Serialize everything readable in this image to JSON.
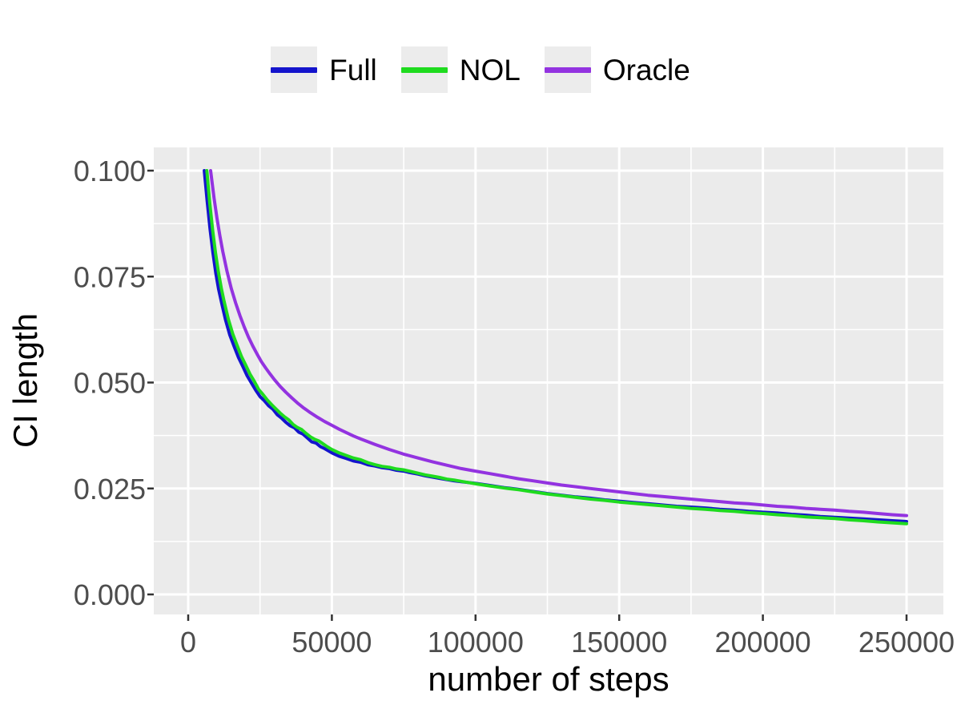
{
  "legend": {
    "position": "top",
    "items": [
      {
        "label": "Full",
        "color": "#1414CC"
      },
      {
        "label": "NOL",
        "color": "#1FDB1F"
      },
      {
        "label": "Oracle",
        "color": "#9333E0"
      }
    ]
  },
  "style": {
    "panel_background": "#EBEBEB",
    "grid_color": "#FFFFFF",
    "tick_mark_color": "#333333",
    "tick_label_color": "#4D4D4D",
    "axis_title_color": "#000000",
    "legend_key_background": "#ECECEC"
  },
  "chart_data": {
    "type": "line",
    "title": "",
    "xlabel": "number of steps",
    "ylabel": "CI length",
    "xlim": [
      0,
      250000
    ],
    "ylim": [
      0.0,
      0.1
    ],
    "grid": true,
    "legend_position": "top",
    "x_ticks": [
      0,
      50000,
      100000,
      150000,
      200000,
      250000
    ],
    "x_tick_labels": [
      "0",
      "50000",
      "100000",
      "150000",
      "200000",
      "250000"
    ],
    "y_ticks": [
      0.0,
      0.025,
      0.05,
      0.075,
      0.1
    ],
    "y_tick_labels": [
      "0.000",
      "0.025",
      "0.050",
      "0.075",
      "0.100"
    ],
    "series": [
      {
        "name": "Full",
        "color": "#1414CC",
        "points": [
          [
            5600,
            0.1
          ],
          [
            6600,
            0.0928
          ],
          [
            7600,
            0.0862
          ],
          [
            8600,
            0.0806
          ],
          [
            9600,
            0.0759
          ],
          [
            10600,
            0.072
          ],
          [
            11600,
            0.0689
          ],
          [
            13000,
            0.0648
          ],
          [
            14500,
            0.0612
          ],
          [
            16000,
            0.0585
          ],
          [
            17500,
            0.0559
          ],
          [
            19000,
            0.0538
          ],
          [
            20500,
            0.0516
          ],
          [
            22000,
            0.0499
          ],
          [
            23500,
            0.0482
          ],
          [
            25000,
            0.0467
          ],
          [
            26500,
            0.0457
          ],
          [
            28000,
            0.0445
          ],
          [
            29500,
            0.0437
          ],
          [
            31000,
            0.0424
          ],
          [
            32500,
            0.0416
          ],
          [
            34000,
            0.0406
          ],
          [
            35500,
            0.0398
          ],
          [
            37000,
            0.0393
          ],
          [
            38500,
            0.0383
          ],
          [
            40000,
            0.0378
          ],
          [
            41500,
            0.0369
          ],
          [
            43000,
            0.036
          ],
          [
            44500,
            0.0357
          ],
          [
            46000,
            0.0349
          ],
          [
            47500,
            0.0344
          ],
          [
            49000,
            0.0338
          ],
          [
            50000,
            0.0334
          ],
          [
            52500,
            0.0326
          ],
          [
            55000,
            0.0321
          ],
          [
            57500,
            0.0315
          ],
          [
            60000,
            0.0312
          ],
          [
            62500,
            0.0306
          ],
          [
            65000,
            0.0303
          ],
          [
            67500,
            0.0299
          ],
          [
            70000,
            0.0297
          ],
          [
            72500,
            0.0293
          ],
          [
            75000,
            0.0291
          ],
          [
            77500,
            0.0287
          ],
          [
            80000,
            0.0284
          ],
          [
            82500,
            0.028
          ],
          [
            85000,
            0.0277
          ],
          [
            87500,
            0.0274
          ],
          [
            90000,
            0.0271
          ],
          [
            92500,
            0.0268
          ],
          [
            95000,
            0.0266
          ],
          [
            97500,
            0.0264
          ],
          [
            100000,
            0.0262
          ],
          [
            105000,
            0.0257
          ],
          [
            110000,
            0.0252
          ],
          [
            115000,
            0.0248
          ],
          [
            120000,
            0.0243
          ],
          [
            125000,
            0.0238
          ],
          [
            130000,
            0.0234
          ],
          [
            135000,
            0.023
          ],
          [
            140000,
            0.0227
          ],
          [
            145000,
            0.0223
          ],
          [
            150000,
            0.022
          ],
          [
            155000,
            0.0217
          ],
          [
            160000,
            0.0214
          ],
          [
            165000,
            0.0211
          ],
          [
            170000,
            0.0208
          ],
          [
            175000,
            0.0206
          ],
          [
            180000,
            0.0204
          ],
          [
            185000,
            0.0201
          ],
          [
            190000,
            0.0199
          ],
          [
            195000,
            0.0196
          ],
          [
            200000,
            0.0194
          ],
          [
            205000,
            0.0192
          ],
          [
            210000,
            0.0189
          ],
          [
            215000,
            0.0187
          ],
          [
            220000,
            0.0184
          ],
          [
            225000,
            0.0182
          ],
          [
            230000,
            0.018
          ],
          [
            235000,
            0.0178
          ],
          [
            240000,
            0.0176
          ],
          [
            245000,
            0.0174
          ],
          [
            250000,
            0.0172
          ]
        ]
      },
      {
        "name": "NOL",
        "color": "#1FDB1F",
        "points": [
          [
            6500,
            0.1
          ],
          [
            7500,
            0.0924
          ],
          [
            8500,
            0.086
          ],
          [
            9500,
            0.0806
          ],
          [
            10500,
            0.0761
          ],
          [
            11500,
            0.0723
          ],
          [
            12500,
            0.0691
          ],
          [
            14000,
            0.0649
          ],
          [
            15500,
            0.0615
          ],
          [
            17000,
            0.0588
          ],
          [
            18500,
            0.0562
          ],
          [
            20000,
            0.0541
          ],
          [
            21500,
            0.052
          ],
          [
            23000,
            0.0503
          ],
          [
            24500,
            0.0484
          ],
          [
            26000,
            0.0472
          ],
          [
            27500,
            0.0459
          ],
          [
            29000,
            0.0448
          ],
          [
            30500,
            0.0438
          ],
          [
            32000,
            0.0428
          ],
          [
            33500,
            0.0419
          ],
          [
            35000,
            0.0412
          ],
          [
            36500,
            0.0401
          ],
          [
            38000,
            0.0394
          ],
          [
            39500,
            0.0389
          ],
          [
            41000,
            0.038
          ],
          [
            42500,
            0.0372
          ],
          [
            44000,
            0.0366
          ],
          [
            45500,
            0.0362
          ],
          [
            47000,
            0.0355
          ],
          [
            48500,
            0.0348
          ],
          [
            50000,
            0.0342
          ],
          [
            52500,
            0.0334
          ],
          [
            55000,
            0.0328
          ],
          [
            57500,
            0.0322
          ],
          [
            60000,
            0.0318
          ],
          [
            62500,
            0.0311
          ],
          [
            65000,
            0.0306
          ],
          [
            67500,
            0.0302
          ],
          [
            70000,
            0.03
          ],
          [
            72500,
            0.0296
          ],
          [
            75000,
            0.0294
          ],
          [
            77500,
            0.029
          ],
          [
            80000,
            0.0286
          ],
          [
            82500,
            0.0282
          ],
          [
            85000,
            0.0279
          ],
          [
            87500,
            0.0276
          ],
          [
            90000,
            0.0272
          ],
          [
            92500,
            0.027
          ],
          [
            95000,
            0.0267
          ],
          [
            97500,
            0.0264
          ],
          [
            100000,
            0.0261
          ],
          [
            105000,
            0.0256
          ],
          [
            110000,
            0.0251
          ],
          [
            115000,
            0.0247
          ],
          [
            120000,
            0.0242
          ],
          [
            125000,
            0.0237
          ],
          [
            130000,
            0.0233
          ],
          [
            135000,
            0.0229
          ],
          [
            140000,
            0.0225
          ],
          [
            145000,
            0.0222
          ],
          [
            150000,
            0.0218
          ],
          [
            155000,
            0.0215
          ],
          [
            160000,
            0.0212
          ],
          [
            165000,
            0.0209
          ],
          [
            170000,
            0.0206
          ],
          [
            175000,
            0.0203
          ],
          [
            180000,
            0.0201
          ],
          [
            185000,
            0.0198
          ],
          [
            190000,
            0.0196
          ],
          [
            195000,
            0.0193
          ],
          [
            200000,
            0.0191
          ],
          [
            205000,
            0.0188
          ],
          [
            210000,
            0.0186
          ],
          [
            215000,
            0.0183
          ],
          [
            220000,
            0.0181
          ],
          [
            225000,
            0.0179
          ],
          [
            230000,
            0.0176
          ],
          [
            235000,
            0.0174
          ],
          [
            240000,
            0.0171
          ],
          [
            245000,
            0.0169
          ],
          [
            250000,
            0.0167
          ]
        ]
      },
      {
        "name": "Oracle",
        "color": "#9333E0",
        "points": [
          [
            7800,
            0.1
          ],
          [
            9000,
            0.0935
          ],
          [
            10000,
            0.0888
          ],
          [
            11000,
            0.0847
          ],
          [
            12000,
            0.081
          ],
          [
            13500,
            0.0763
          ],
          [
            15000,
            0.0722
          ],
          [
            16500,
            0.0688
          ],
          [
            18000,
            0.0658
          ],
          [
            19500,
            0.0631
          ],
          [
            21000,
            0.0607
          ],
          [
            22500,
            0.0586
          ],
          [
            24000,
            0.0567
          ],
          [
            25500,
            0.0549
          ],
          [
            27000,
            0.0534
          ],
          [
            28500,
            0.052
          ],
          [
            30000,
            0.0507
          ],
          [
            32000,
            0.0491
          ],
          [
            34000,
            0.0477
          ],
          [
            36000,
            0.0464
          ],
          [
            38000,
            0.0452
          ],
          [
            40000,
            0.0441
          ],
          [
            42500,
            0.0429
          ],
          [
            45000,
            0.0418
          ],
          [
            47500,
            0.0408
          ],
          [
            50000,
            0.0399
          ],
          [
            52500,
            0.039
          ],
          [
            55000,
            0.0382
          ],
          [
            57500,
            0.0374
          ],
          [
            60000,
            0.0367
          ],
          [
            65000,
            0.0354
          ],
          [
            70000,
            0.0342
          ],
          [
            75000,
            0.0331
          ],
          [
            80000,
            0.0322
          ],
          [
            85000,
            0.0313
          ],
          [
            90000,
            0.0305
          ],
          [
            95000,
            0.0297
          ],
          [
            100000,
            0.0291
          ],
          [
            105000,
            0.0285
          ],
          [
            110000,
            0.0279
          ],
          [
            115000,
            0.0273
          ],
          [
            120000,
            0.0268
          ],
          [
            125000,
            0.0263
          ],
          [
            130000,
            0.0258
          ],
          [
            135000,
            0.0254
          ],
          [
            140000,
            0.025
          ],
          [
            145000,
            0.0246
          ],
          [
            150000,
            0.0242
          ],
          [
            155000,
            0.0238
          ],
          [
            160000,
            0.0234
          ],
          [
            165000,
            0.0231
          ],
          [
            170000,
            0.0228
          ],
          [
            175000,
            0.0225
          ],
          [
            180000,
            0.0222
          ],
          [
            185000,
            0.0219
          ],
          [
            190000,
            0.0216
          ],
          [
            195000,
            0.0214
          ],
          [
            200000,
            0.0211
          ],
          [
            205000,
            0.0208
          ],
          [
            210000,
            0.0206
          ],
          [
            215000,
            0.0203
          ],
          [
            220000,
            0.0201
          ],
          [
            225000,
            0.0199
          ],
          [
            230000,
            0.0196
          ],
          [
            235000,
            0.0194
          ],
          [
            240000,
            0.0191
          ],
          [
            245000,
            0.0188
          ],
          [
            250000,
            0.0186
          ]
        ]
      }
    ]
  }
}
